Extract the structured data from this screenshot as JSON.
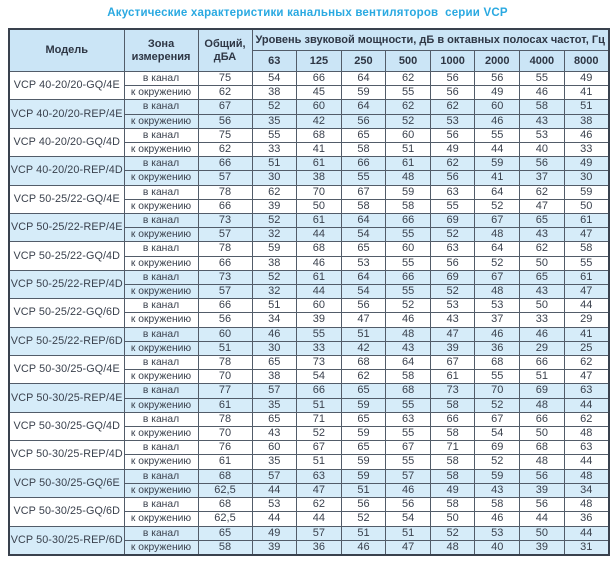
{
  "title": "Акустические характеристики канальных вентиляторов  серии VCP",
  "colors": {
    "title_text": "#2aa9e1",
    "header_bg": "#cbe5f6",
    "shaded_row_bg": "#d6ecf9",
    "white_row_bg": "#ffffff",
    "border": "#39414d",
    "text": "#3a414d"
  },
  "table": {
    "headers": {
      "model": "Модель",
      "zone": "Зона\nизмерения",
      "total": "Общий,\nдБА",
      "spectrum": "Уровень звуковой мощности, дБ в октавных полосах частот, Гц"
    },
    "frequencies": [
      "63",
      "125",
      "250",
      "500",
      "1000",
      "2000",
      "4000",
      "8000"
    ],
    "models": [
      {
        "name": "VCP 40-20/20-GQ/4E",
        "shaded": false,
        "rows": [
          {
            "zone": "в канал",
            "total": "75",
            "levels": [
              "54",
              "66",
              "64",
              "62",
              "56",
              "56",
              "55",
              "49"
            ]
          },
          {
            "zone": "к окружению",
            "total": "62",
            "levels": [
              "38",
              "45",
              "59",
              "55",
              "56",
              "49",
              "46",
              "41"
            ]
          }
        ]
      },
      {
        "name": "VCP 40-20/20-REP/4E",
        "shaded": true,
        "rows": [
          {
            "zone": "в канал",
            "total": "67",
            "levels": [
              "52",
              "60",
              "64",
              "62",
              "62",
              "60",
              "58",
              "51"
            ]
          },
          {
            "zone": "к окружению",
            "total": "56",
            "levels": [
              "35",
              "42",
              "56",
              "52",
              "53",
              "46",
              "43",
              "38"
            ]
          }
        ]
      },
      {
        "name": "VCP 40-20/20-GQ/4D",
        "shaded": false,
        "rows": [
          {
            "zone": "в канал",
            "total": "75",
            "levels": [
              "55",
              "68",
              "65",
              "60",
              "56",
              "55",
              "53",
              "46"
            ]
          },
          {
            "zone": "к окружению",
            "total": "62",
            "levels": [
              "33",
              "41",
              "58",
              "51",
              "49",
              "44",
              "40",
              "33"
            ]
          }
        ]
      },
      {
        "name": "VCP 40-20/20-REP/4D",
        "shaded": true,
        "rows": [
          {
            "zone": "в канал",
            "total": "66",
            "levels": [
              "51",
              "61",
              "66",
              "61",
              "62",
              "59",
              "56",
              "49"
            ]
          },
          {
            "zone": "к окружению",
            "total": "57",
            "levels": [
              "30",
              "38",
              "55",
              "48",
              "56",
              "41",
              "37",
              "30"
            ]
          }
        ]
      },
      {
        "name": "VCP 50-25/22-GQ/4E",
        "shaded": false,
        "rows": [
          {
            "zone": "в канал",
            "total": "78",
            "levels": [
              "62",
              "70",
              "67",
              "59",
              "63",
              "64",
              "62",
              "59"
            ]
          },
          {
            "zone": "к окружению",
            "total": "66",
            "levels": [
              "39",
              "50",
              "58",
              "58",
              "55",
              "52",
              "47",
              "50"
            ]
          }
        ]
      },
      {
        "name": "VCP 50-25/22-REP/4E",
        "shaded": true,
        "rows": [
          {
            "zone": "в канал",
            "total": "73",
            "levels": [
              "52",
              "61",
              "64",
              "66",
              "69",
              "67",
              "65",
              "61"
            ]
          },
          {
            "zone": "к окружению",
            "total": "57",
            "levels": [
              "32",
              "44",
              "54",
              "55",
              "52",
              "48",
              "43",
              "47"
            ]
          }
        ]
      },
      {
        "name": "VCP 50-25/22-GQ/4D",
        "shaded": false,
        "rows": [
          {
            "zone": "в канал",
            "total": "78",
            "levels": [
              "59",
              "68",
              "65",
              "60",
              "63",
              "64",
              "62",
              "58"
            ]
          },
          {
            "zone": "к окружению",
            "total": "66",
            "levels": [
              "38",
              "46",
              "53",
              "55",
              "56",
              "52",
              "50",
              "55"
            ]
          }
        ]
      },
      {
        "name": "VCP 50-25/22-REP/4D",
        "shaded": true,
        "rows": [
          {
            "zone": "в канал",
            "total": "73",
            "levels": [
              "52",
              "61",
              "64",
              "66",
              "69",
              "67",
              "65",
              "61"
            ]
          },
          {
            "zone": "к окружению",
            "total": "57",
            "levels": [
              "32",
              "44",
              "54",
              "55",
              "52",
              "48",
              "43",
              "47"
            ]
          }
        ]
      },
      {
        "name": "VCP 50-25/22-GQ/6D",
        "shaded": false,
        "rows": [
          {
            "zone": "в канал",
            "total": "66",
            "levels": [
              "51",
              "60",
              "56",
              "52",
              "53",
              "53",
              "50",
              "44"
            ]
          },
          {
            "zone": "к окружению",
            "total": "56",
            "levels": [
              "34",
              "39",
              "47",
              "46",
              "43",
              "37",
              "33",
              "29"
            ]
          }
        ]
      },
      {
        "name": "VCP 50-25/22-REP/6D",
        "shaded": true,
        "rows": [
          {
            "zone": "в канал",
            "total": "60",
            "levels": [
              "46",
              "55",
              "51",
              "48",
              "47",
              "46",
              "46",
              "41"
            ]
          },
          {
            "zone": "к окружению",
            "total": "51",
            "levels": [
              "30",
              "33",
              "42",
              "43",
              "39",
              "36",
              "29",
              "25"
            ]
          }
        ]
      },
      {
        "name": "VCP 50-30/25-GQ/4E",
        "shaded": false,
        "rows": [
          {
            "zone": "в канал",
            "total": "78",
            "levels": [
              "65",
              "73",
              "68",
              "64",
              "67",
              "68",
              "66",
              "62"
            ]
          },
          {
            "zone": "к окружению",
            "total": "70",
            "levels": [
              "38",
              "54",
              "62",
              "58",
              "61",
              "55",
              "51",
              "47"
            ]
          }
        ]
      },
      {
        "name": "VCP 50-30/25-REP/4E",
        "shaded": true,
        "rows": [
          {
            "zone": "в канал",
            "total": "77",
            "levels": [
              "57",
              "66",
              "65",
              "68",
              "73",
              "70",
              "69",
              "63"
            ]
          },
          {
            "zone": "к окружению",
            "total": "61",
            "levels": [
              "35",
              "51",
              "59",
              "55",
              "58",
              "52",
              "48",
              "44"
            ]
          }
        ]
      },
      {
        "name": "VCP 50-30/25-GQ/4D",
        "shaded": false,
        "rows": [
          {
            "zone": "в канал",
            "total": "78",
            "levels": [
              "65",
              "71",
              "65",
              "63",
              "66",
              "67",
              "66",
              "62"
            ]
          },
          {
            "zone": "к окружению",
            "total": "70",
            "levels": [
              "43",
              "52",
              "59",
              "55",
              "58",
              "54",
              "50",
              "48"
            ]
          }
        ]
      },
      {
        "name": "VCP 50-30/25-REP/4D",
        "shaded": false,
        "rows": [
          {
            "zone": "в канал",
            "total": "76",
            "levels": [
              "60",
              "67",
              "65",
              "67",
              "71",
              "69",
              "68",
              "63"
            ]
          },
          {
            "zone": "к окружению",
            "total": "61",
            "levels": [
              "35",
              "51",
              "59",
              "55",
              "58",
              "52",
              "48",
              "44"
            ]
          }
        ]
      },
      {
        "name": "VCP 50-30/25-GQ/6E",
        "shaded": true,
        "rows": [
          {
            "zone": "в канал",
            "total": "68",
            "levels": [
              "57",
              "63",
              "59",
              "57",
              "58",
              "59",
              "56",
              "48"
            ]
          },
          {
            "zone": "к окружению",
            "total": "62,5",
            "levels": [
              "44",
              "47",
              "51",
              "46",
              "49",
              "43",
              "39",
              "34"
            ]
          }
        ]
      },
      {
        "name": "VCP 50-30/25-GQ/6D",
        "shaded": false,
        "rows": [
          {
            "zone": "в канал",
            "total": "68",
            "levels": [
              "53",
              "62",
              "56",
              "56",
              "58",
              "58",
              "56",
              "48"
            ]
          },
          {
            "zone": "к окружению",
            "total": "62,5",
            "levels": [
              "44",
              "44",
              "52",
              "54",
              "50",
              "46",
              "44",
              "36"
            ]
          }
        ]
      },
      {
        "name": "VCP 50-30/25-REP/6D",
        "shaded": true,
        "rows": [
          {
            "zone": "в канал",
            "total": "65",
            "levels": [
              "49",
              "57",
              "51",
              "51",
              "52",
              "53",
              "50",
              "44"
            ]
          },
          {
            "zone": "к окружению",
            "total": "58",
            "levels": [
              "39",
              "36",
              "46",
              "47",
              "48",
              "40",
              "39",
              "31"
            ]
          }
        ]
      }
    ]
  }
}
